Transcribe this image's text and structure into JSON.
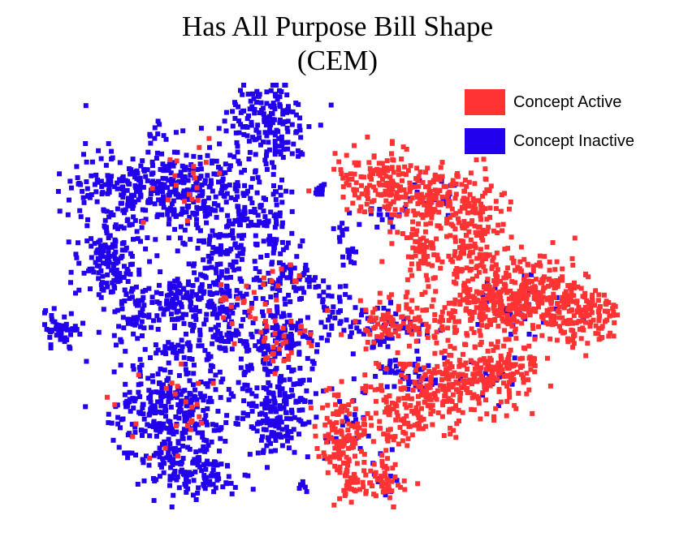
{
  "chart_data": {
    "type": "scatter",
    "title": "Has All Purpose Bill Shape",
    "subtitle": "(CEM)",
    "axes": "hidden",
    "grid": false,
    "legend_placement": "top-right",
    "legend": [
      {
        "label": "Concept Active",
        "color": "#ff3333"
      },
      {
        "label": "Concept Inactive",
        "color": "#2200ee"
      }
    ],
    "series": [
      {
        "name": "Concept Active",
        "color": "#ff3333",
        "clusters": [
          {
            "x": 470,
            "y": 225,
            "sx": 28,
            "sy": 22,
            "n": 160
          },
          {
            "x": 535,
            "y": 245,
            "sx": 25,
            "sy": 18,
            "n": 120
          },
          {
            "x": 585,
            "y": 270,
            "sx": 20,
            "sy": 30,
            "n": 120
          },
          {
            "x": 520,
            "y": 305,
            "sx": 18,
            "sy": 22,
            "n": 70
          },
          {
            "x": 575,
            "y": 330,
            "sx": 15,
            "sy": 25,
            "n": 60
          },
          {
            "x": 650,
            "y": 355,
            "sx": 35,
            "sy": 18,
            "n": 200
          },
          {
            "x": 710,
            "y": 385,
            "sx": 30,
            "sy": 18,
            "n": 170
          },
          {
            "x": 600,
            "y": 380,
            "sx": 30,
            "sy": 15,
            "n": 140
          },
          {
            "x": 500,
            "y": 395,
            "sx": 35,
            "sy": 15,
            "n": 110
          },
          {
            "x": 560,
            "y": 470,
            "sx": 45,
            "sy": 25,
            "n": 230
          },
          {
            "x": 620,
            "y": 455,
            "sx": 20,
            "sy": 15,
            "n": 90
          },
          {
            "x": 500,
            "y": 510,
            "sx": 30,
            "sy": 18,
            "n": 110
          },
          {
            "x": 420,
            "y": 540,
            "sx": 14,
            "sy": 30,
            "n": 120
          },
          {
            "x": 440,
            "y": 590,
            "sx": 12,
            "sy": 12,
            "n": 35
          },
          {
            "x": 475,
            "y": 590,
            "sx": 12,
            "sy": 18,
            "n": 45
          }
        ]
      },
      {
        "name": "Concept Inactive",
        "color": "#2200ee",
        "clusters": [
          {
            "x": 330,
            "y": 150,
            "sx": 28,
            "sy": 28,
            "n": 170
          },
          {
            "x": 160,
            "y": 235,
            "sx": 35,
            "sy": 25,
            "n": 200
          },
          {
            "x": 225,
            "y": 230,
            "sx": 25,
            "sy": 25,
            "n": 150
          },
          {
            "x": 280,
            "y": 240,
            "sx": 20,
            "sy": 25,
            "n": 90
          },
          {
            "x": 135,
            "y": 320,
            "sx": 20,
            "sy": 25,
            "n": 140
          },
          {
            "x": 75,
            "y": 405,
            "sx": 12,
            "sy": 10,
            "n": 50
          },
          {
            "x": 160,
            "y": 390,
            "sx": 15,
            "sy": 20,
            "n": 40
          },
          {
            "x": 215,
            "y": 375,
            "sx": 25,
            "sy": 18,
            "n": 110
          },
          {
            "x": 275,
            "y": 305,
            "sx": 18,
            "sy": 18,
            "n": 70
          },
          {
            "x": 270,
            "y": 380,
            "sx": 22,
            "sy": 30,
            "n": 130
          },
          {
            "x": 330,
            "y": 270,
            "sx": 18,
            "sy": 30,
            "n": 80
          },
          {
            "x": 355,
            "y": 345,
            "sx": 22,
            "sy": 18,
            "n": 90
          },
          {
            "x": 340,
            "y": 420,
            "sx": 28,
            "sy": 20,
            "n": 140
          },
          {
            "x": 215,
            "y": 430,
            "sx": 15,
            "sy": 8,
            "n": 30
          },
          {
            "x": 210,
            "y": 510,
            "sx": 35,
            "sy": 35,
            "n": 330
          },
          {
            "x": 240,
            "y": 580,
            "sx": 25,
            "sy": 20,
            "n": 120
          },
          {
            "x": 340,
            "y": 505,
            "sx": 25,
            "sy": 30,
            "n": 190
          },
          {
            "x": 410,
            "y": 380,
            "sx": 8,
            "sy": 15,
            "n": 25
          },
          {
            "x": 395,
            "y": 236,
            "sx": 4,
            "sy": 4,
            "n": 12
          },
          {
            "x": 190,
            "y": 165,
            "sx": 4,
            "sy": 6,
            "n": 8
          },
          {
            "x": 432,
            "y": 315,
            "sx": 6,
            "sy": 8,
            "n": 12
          },
          {
            "x": 420,
            "y": 285,
            "sx": 4,
            "sy": 8,
            "n": 8
          },
          {
            "x": 375,
            "y": 600,
            "sx": 4,
            "sy": 4,
            "n": 6
          },
          {
            "x": 155,
            "y": 500,
            "sx": 3,
            "sy": 3,
            "n": 4
          },
          {
            "x": 470,
            "y": 400,
            "sx": 30,
            "sy": 15,
            "n": 60
          },
          {
            "x": 500,
            "y": 460,
            "sx": 25,
            "sy": 12,
            "n": 45
          },
          {
            "x": 430,
            "y": 530,
            "sx": 15,
            "sy": 25,
            "n": 25
          },
          {
            "x": 470,
            "y": 265,
            "sx": 15,
            "sy": 8,
            "n": 20
          },
          {
            "x": 640,
            "y": 380,
            "sx": 45,
            "sy": 20,
            "n": 35
          },
          {
            "x": 540,
            "y": 240,
            "sx": 15,
            "sy": 10,
            "n": 15
          },
          {
            "x": 600,
            "y": 470,
            "sx": 20,
            "sy": 12,
            "n": 20
          },
          {
            "x": 470,
            "y": 590,
            "sx": 8,
            "sy": 12,
            "n": 12
          }
        ]
      }
    ],
    "mixed_red_in_blue": [
      {
        "x": 350,
        "y": 420,
        "sx": 20,
        "sy": 15,
        "n": 35
      },
      {
        "x": 210,
        "y": 510,
        "sx": 30,
        "sy": 30,
        "n": 25
      },
      {
        "x": 230,
        "y": 230,
        "sx": 30,
        "sy": 30,
        "n": 20
      },
      {
        "x": 300,
        "y": 370,
        "sx": 20,
        "sy": 20,
        "n": 18
      },
      {
        "x": 350,
        "y": 340,
        "sx": 15,
        "sy": 15,
        "n": 10
      }
    ]
  }
}
